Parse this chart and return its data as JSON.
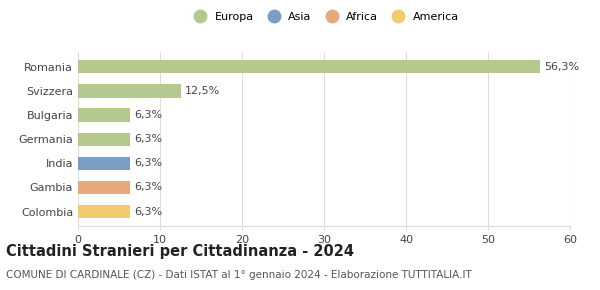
{
  "categories": [
    "Romania",
    "Svizzera",
    "Bulgaria",
    "Germania",
    "India",
    "Gambia",
    "Colombia"
  ],
  "values": [
    56.3,
    12.5,
    6.3,
    6.3,
    6.3,
    6.3,
    6.3
  ],
  "labels": [
    "56,3%",
    "12,5%",
    "6,3%",
    "6,3%",
    "6,3%",
    "6,3%",
    "6,3%"
  ],
  "bar_colors": [
    "#b5c98e",
    "#b5c98e",
    "#b5c98e",
    "#b5c98e",
    "#7b9ec4",
    "#e8a87c",
    "#f0cc6e"
  ],
  "legend_items": [
    {
      "label": "Europa",
      "color": "#b5c98e"
    },
    {
      "label": "Asia",
      "color": "#7b9ec4"
    },
    {
      "label": "Africa",
      "color": "#e8a87c"
    },
    {
      "label": "America",
      "color": "#f0cc6e"
    }
  ],
  "xlim": [
    0,
    60
  ],
  "xticks": [
    0,
    10,
    20,
    30,
    40,
    50,
    60
  ],
  "title": "Cittadini Stranieri per Cittadinanza - 2024",
  "subtitle": "COMUNE DI CARDINALE (CZ) - Dati ISTAT al 1° gennaio 2024 - Elaborazione TUTTITALIA.IT",
  "background_color": "#ffffff",
  "grid_color": "#dddddd",
  "title_fontsize": 10.5,
  "subtitle_fontsize": 7.5,
  "label_fontsize": 8,
  "tick_fontsize": 8
}
